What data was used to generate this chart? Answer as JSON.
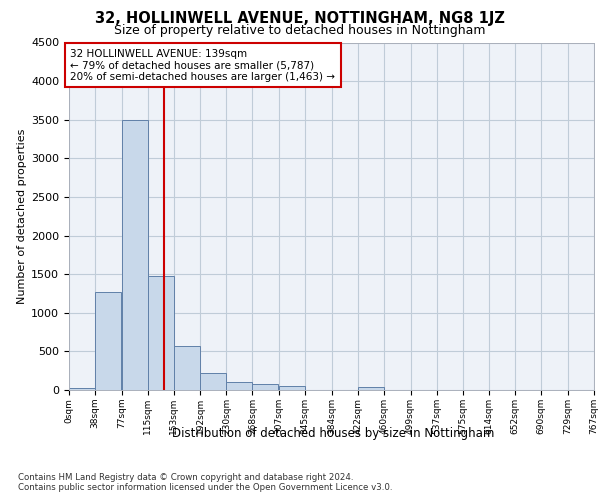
{
  "title1": "32, HOLLINWELL AVENUE, NOTTINGHAM, NG8 1JZ",
  "title2": "Size of property relative to detached houses in Nottingham",
  "xlabel": "Distribution of detached houses by size in Nottingham",
  "ylabel": "Number of detached properties",
  "annotation_line1": "32 HOLLINWELL AVENUE: 139sqm",
  "annotation_line2": "← 79% of detached houses are smaller (5,787)",
  "annotation_line3": "20% of semi-detached houses are larger (1,463) →",
  "property_size": 139,
  "bin_edges": [
    0,
    38,
    77,
    115,
    153,
    192,
    230,
    268,
    307,
    345,
    384,
    422,
    460,
    499,
    537,
    575,
    614,
    652,
    690,
    729,
    767
  ],
  "bar_heights": [
    25,
    1270,
    3500,
    1470,
    570,
    220,
    110,
    75,
    50,
    0,
    0,
    40,
    0,
    0,
    0,
    0,
    0,
    0,
    0,
    0
  ],
  "bar_color": "#c8d8ea",
  "bar_edge_color": "#6080a8",
  "vline_color": "#cc0000",
  "vline_x": 139,
  "annotation_box_color": "#cc0000",
  "grid_color": "#c0ccd8",
  "ylim": [
    0,
    4500
  ],
  "yticks": [
    0,
    500,
    1000,
    1500,
    2000,
    2500,
    3000,
    3500,
    4000,
    4500
  ],
  "footer1": "Contains HM Land Registry data © Crown copyright and database right 2024.",
  "footer2": "Contains public sector information licensed under the Open Government Licence v3.0.",
  "bg_color": "#eef2f8"
}
